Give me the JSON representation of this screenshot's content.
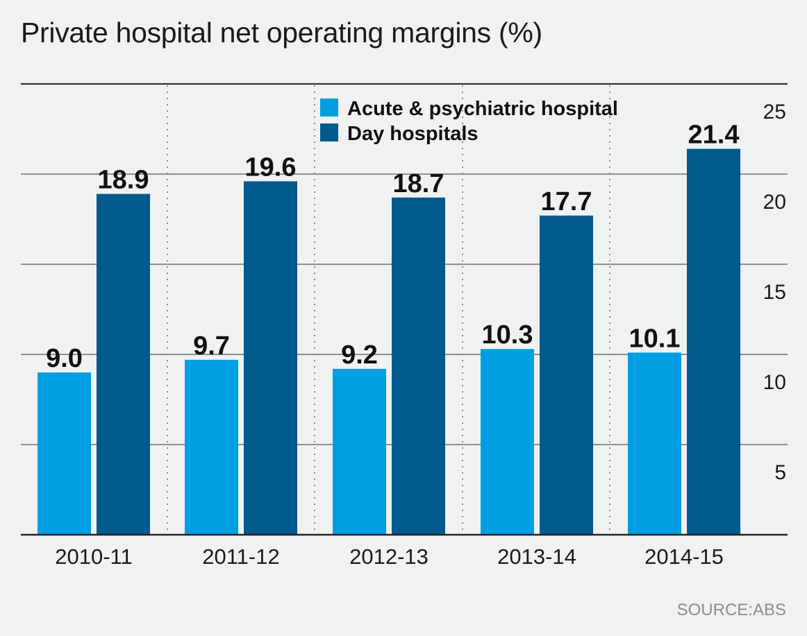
{
  "title": "Private hospital net operating margins (%)",
  "source": "SOURCE:ABS",
  "chart_data": {
    "type": "bar",
    "title": "Private hospital net operating margins (%)",
    "categories": [
      "2010-11",
      "2011-12",
      "2012-13",
      "2013-14",
      "2014-15"
    ],
    "series": [
      {
        "name": "Acute & psychiatric hospital",
        "values": [
          9.0,
          9.7,
          9.2,
          10.3,
          10.1
        ],
        "color": "#009fe3"
      },
      {
        "name": "Day hospitals",
        "values": [
          18.9,
          19.6,
          18.7,
          17.7,
          21.4
        ],
        "color": "#005a8e"
      }
    ],
    "data_labels": [
      [
        "9.0",
        "9.7",
        "9.2",
        "10.3",
        "10.1"
      ],
      [
        "18.9",
        "19.6",
        "18.7",
        "17.7",
        "21.4"
      ]
    ],
    "y_axis": {
      "position": "right",
      "ylim": [
        0,
        25
      ],
      "ticks": [
        5,
        10,
        15,
        20,
        25
      ],
      "tick_labels": [
        "5",
        "10",
        "15",
        "20",
        "25"
      ]
    },
    "xlabel": "",
    "ylabel": "",
    "grid": true,
    "legend_position": "top-center"
  },
  "colors": {
    "background": "#f0f1f1",
    "acute": "#009fe3",
    "day": "#005a8e",
    "gridline": "#555555",
    "baseline": "#222222"
  }
}
